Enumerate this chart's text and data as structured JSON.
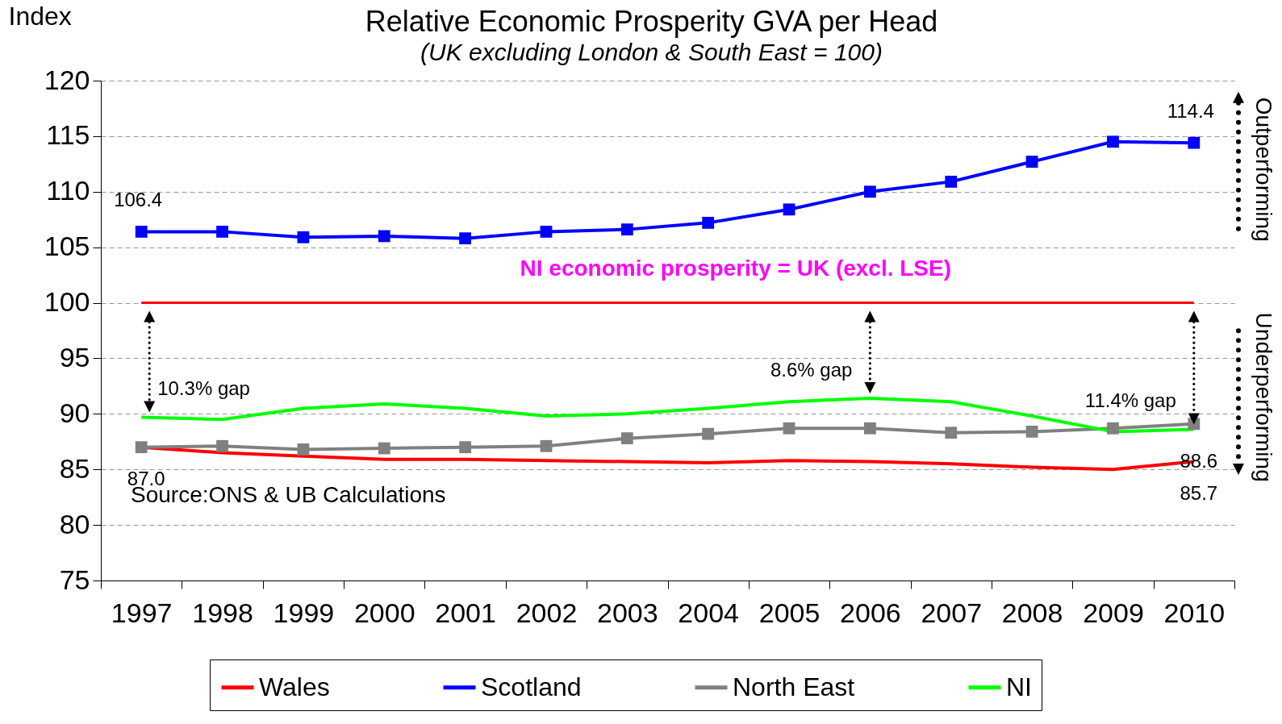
{
  "chart_data": {
    "type": "line",
    "title": "Relative Economic Prosperity GVA per Head",
    "subtitle": "(UK excluding London & South East = 100)",
    "ylabel": "Index",
    "categories": [
      "1997",
      "1998",
      "1999",
      "2000",
      "2001",
      "2002",
      "2003",
      "2004",
      "2005",
      "2006",
      "2007",
      "2008",
      "2009",
      "2010"
    ],
    "series": [
      {
        "name": "Wales",
        "color": "#ff0000",
        "marker": "none",
        "values": [
          87.0,
          86.5,
          86.2,
          85.9,
          85.9,
          85.8,
          85.7,
          85.6,
          85.8,
          85.7,
          85.5,
          85.2,
          85.0,
          85.7
        ],
        "value_labels": [
          "87.0",
          null,
          null,
          null,
          null,
          null,
          null,
          null,
          null,
          null,
          null,
          null,
          null,
          "85.7"
        ]
      },
      {
        "name": "Scotland",
        "color": "#0000ff",
        "marker": "square",
        "values": [
          106.4,
          106.4,
          105.9,
          106.0,
          105.8,
          106.4,
          106.6,
          107.2,
          108.4,
          110.0,
          110.9,
          112.7,
          114.5,
          114.4
        ],
        "value_labels": [
          "106.4",
          null,
          null,
          null,
          null,
          null,
          null,
          null,
          null,
          null,
          null,
          null,
          null,
          "114.4"
        ]
      },
      {
        "name": "North East",
        "color": "#808080",
        "marker": "square",
        "values": [
          87.0,
          87.1,
          86.8,
          86.9,
          87.0,
          87.1,
          87.8,
          88.2,
          88.7,
          88.7,
          88.3,
          88.4,
          88.7,
          89.1
        ]
      },
      {
        "name": "NI",
        "color": "#00ff00",
        "marker": "none",
        "values": [
          89.7,
          89.5,
          90.5,
          90.9,
          90.5,
          89.8,
          90.0,
          90.5,
          91.1,
          91.4,
          91.1,
          89.8,
          88.4,
          88.6
        ],
        "value_labels": [
          null,
          null,
          null,
          null,
          null,
          null,
          null,
          null,
          null,
          null,
          null,
          null,
          null,
          "88.6"
        ]
      }
    ],
    "ylim": [
      75,
      120
    ],
    "yticks": [
      75,
      80,
      85,
      90,
      95,
      100,
      105,
      110,
      115,
      120
    ],
    "grid": "y",
    "legend": "bottom",
    "ref_lines": [
      {
        "axis": "y",
        "value": 100,
        "color": "#ff0000",
        "label": "NI economic prosperity = UK (excl. LSE)"
      }
    ],
    "annotations": [
      {
        "text": "10.3% gap",
        "x": "1997",
        "y": 89.7
      },
      {
        "text": "8.6% gap",
        "x": "2006",
        "y": 91.4
      },
      {
        "text": "11.4% gap",
        "x": "2010",
        "y": 88.6
      },
      "Outperforming",
      "Underperforming",
      "Source:ONS & UB Calculations"
    ]
  }
}
